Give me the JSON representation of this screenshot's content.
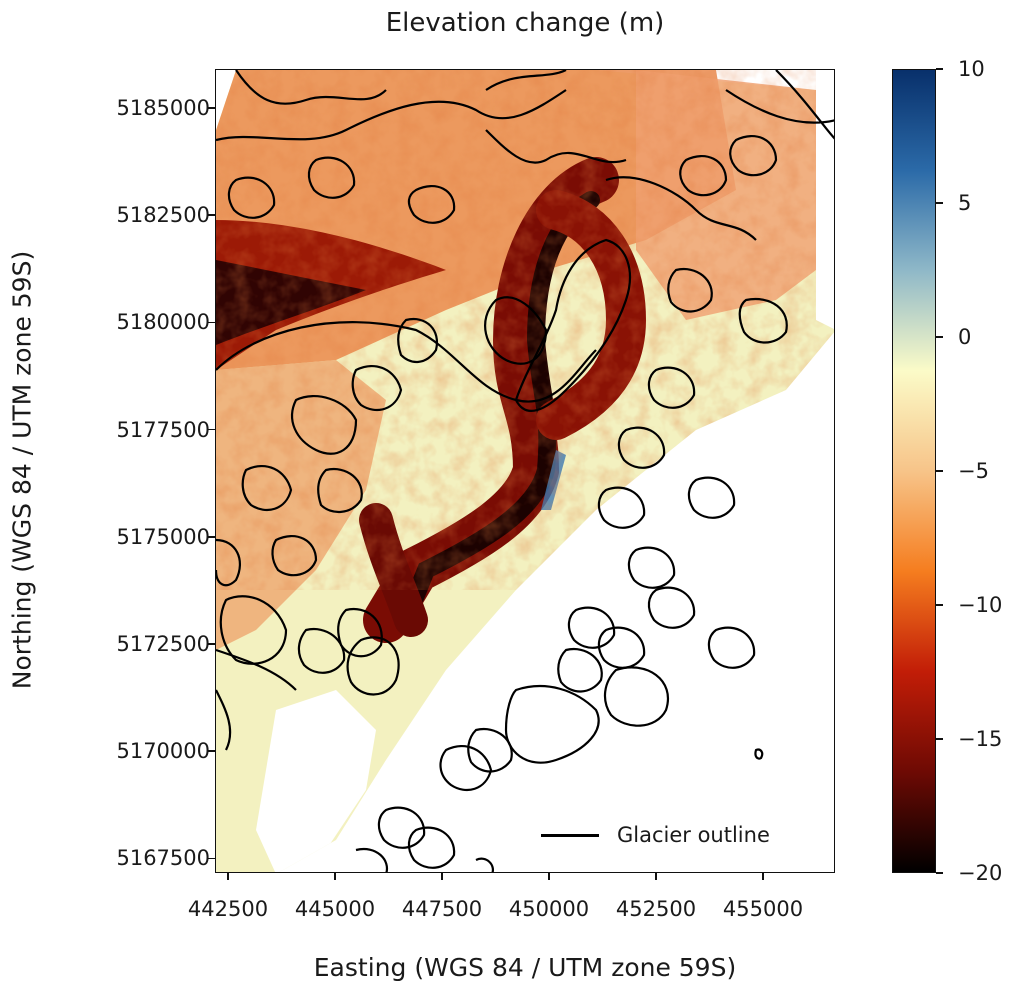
{
  "title": "Elevation change (m)",
  "xlabel": "Easting (WGS 84 / UTM zone 59S)",
  "ylabel": "Northing (WGS 84 / UTM zone 59S)",
  "x_ticks": [
    "442500",
    "445000",
    "447500",
    "450000",
    "452500",
    "455000"
  ],
  "y_ticks": [
    "5185000",
    "5182500",
    "5180000",
    "5177500",
    "5175000",
    "5172500",
    "5170000",
    "5167500"
  ],
  "colorbar": {
    "ticks": [
      "10",
      "5",
      "0",
      "−5",
      "−10",
      "−15",
      "−20"
    ],
    "range": [
      -20,
      10
    ],
    "colors": [
      "#08306b",
      "#2b6aa8",
      "#8fb8c8",
      "#fbfbc8",
      "#f7c489",
      "#f57d1f",
      "#c21d07",
      "#6e0a04",
      "#000000"
    ]
  },
  "legend": {
    "glacier_outline": "Glacier outline",
    "location": "lower-right"
  },
  "colors": {
    "outline": "#000000",
    "loss": "#c2410c",
    "stable": "#f3f1c0"
  }
}
